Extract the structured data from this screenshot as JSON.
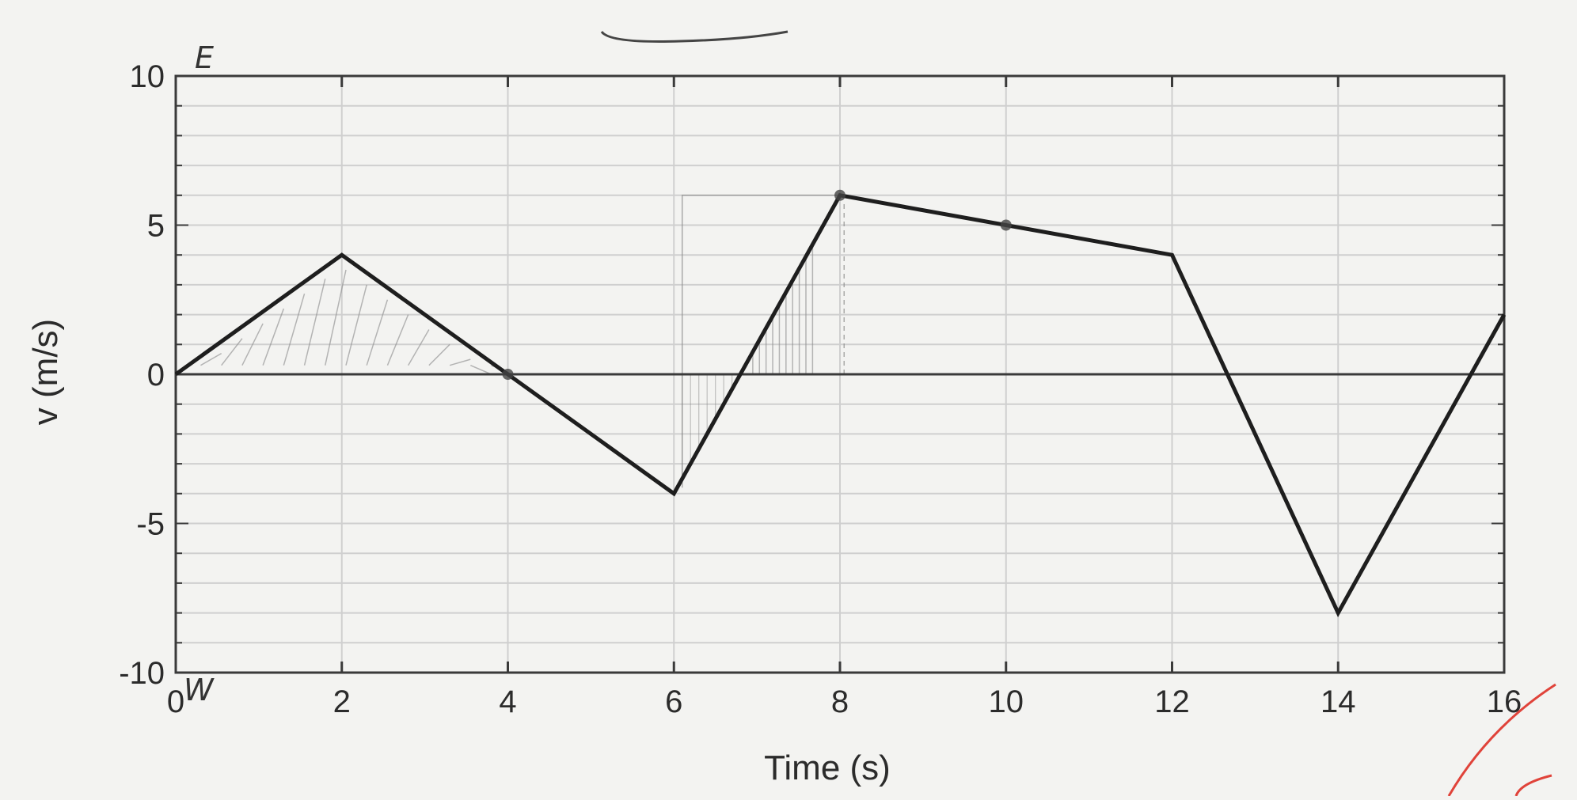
{
  "chart_data": {
    "type": "line",
    "title": "",
    "xlabel": "Time (s)",
    "ylabel": "v (m/s)",
    "xlim": [
      0,
      16
    ],
    "ylim": [
      -10,
      10
    ],
    "x_ticks": [
      0,
      2,
      4,
      6,
      8,
      10,
      12,
      14,
      16
    ],
    "x_tick_labels": [
      "0",
      "2",
      "4",
      "6",
      "8",
      "10",
      "12",
      "14",
      "16"
    ],
    "y_ticks": [
      -10,
      -5,
      0,
      5,
      10
    ],
    "y_tick_labels": [
      "-10",
      "-5",
      "0",
      "5",
      "10"
    ],
    "grid": true,
    "minor_y_step": 1,
    "series": [
      {
        "x": [
          0,
          2,
          4,
          6,
          8,
          10,
          12,
          14,
          16
        ],
        "y": [
          0,
          4,
          0,
          -4,
          6,
          5,
          4,
          -8,
          2
        ]
      }
    ],
    "handwritten_points": [
      {
        "x": 4,
        "y": 0
      },
      {
        "x": 8,
        "y": 6
      },
      {
        "x": 10,
        "y": 5
      }
    ],
    "annotations": {
      "top_left_mark": "E",
      "origin_mark": "W"
    }
  },
  "colors": {
    "paper": "#f3f3f1",
    "grid": "#cfcfcf",
    "axis": "#3a3a3a",
    "line": "#1e1e1e",
    "pencil": "#8a8a8a",
    "red_mark": "#e0433a"
  }
}
